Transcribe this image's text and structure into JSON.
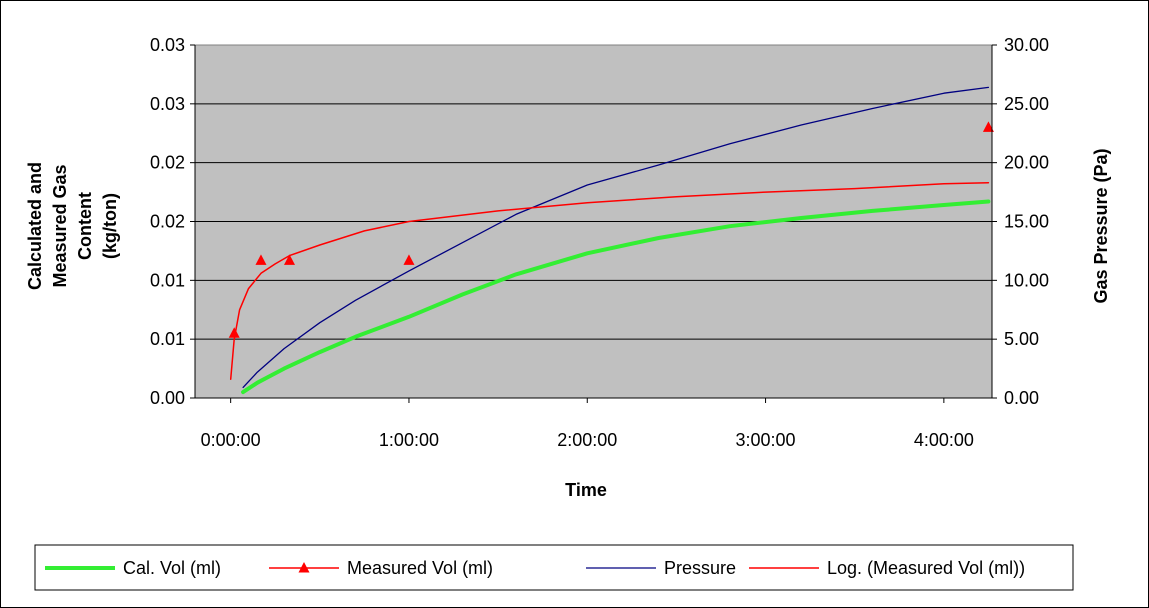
{
  "chart_data": {
    "type": "line",
    "title": "",
    "xlabel": "Time",
    "ylabel_left_lines": [
      "Calculated and",
      "Measured Gas",
      "Content",
      "(kg/ton)"
    ],
    "ylabel_right": "Gas Pressure (Pa)",
    "x_ticks": [
      "0:00:00",
      "1:00:00",
      "2:00:00",
      "3:00:00",
      "4:00:00"
    ],
    "x_tick_hours": [
      0,
      1,
      2,
      3,
      4
    ],
    "xlim_hours": [
      -0.2,
      4.27
    ],
    "y_left_ticks": [
      "0.00",
      "0.01",
      "0.01",
      "0.02",
      "0.02",
      "0.03",
      "0.03"
    ],
    "y_left_lim": [
      0,
      0.03
    ],
    "y_right_ticks": [
      "0.00",
      "5.00",
      "10.00",
      "15.00",
      "20.00",
      "25.00",
      "30.00"
    ],
    "y_right_lim": [
      0,
      30
    ],
    "grid": true,
    "legend_position": "bottom",
    "plot_background": "#c0c0c0",
    "series": [
      {
        "name": "Cal. Vol (ml)",
        "axis": "left",
        "color": "#33ee33",
        "x_hours": [
          0.07,
          0.15,
          0.3,
          0.5,
          0.7,
          1.0,
          1.3,
          1.6,
          2.0,
          2.4,
          2.8,
          3.2,
          3.6,
          4.0,
          4.25
        ],
        "values": [
          0.0005,
          0.0013,
          0.0025,
          0.0039,
          0.0052,
          0.0069,
          0.0088,
          0.0105,
          0.0123,
          0.0136,
          0.0146,
          0.0153,
          0.0159,
          0.0164,
          0.0167
        ]
      },
      {
        "name": "Measured Vol (ml)",
        "axis": "left",
        "color": "#ff0000",
        "marker": "triangle",
        "x_hours": [
          0.02,
          0.17,
          0.33,
          1.0,
          4.25
        ],
        "values": [
          0.0055,
          0.0117,
          0.0117,
          0.0117,
          0.023
        ]
      },
      {
        "name": "Pressure",
        "axis": "right",
        "color": "#000080",
        "x_hours": [
          0.07,
          0.15,
          0.3,
          0.5,
          0.7,
          1.0,
          1.3,
          1.6,
          2.0,
          2.4,
          2.8,
          3.2,
          3.6,
          4.0,
          4.25
        ],
        "values": [
          0.9,
          2.2,
          4.2,
          6.4,
          8.3,
          10.8,
          13.2,
          15.6,
          18.1,
          19.8,
          21.6,
          23.2,
          24.6,
          25.9,
          26.4
        ]
      },
      {
        "name": "Log. (Measured Vol (ml))",
        "axis": "left",
        "color": "#ff0000",
        "x_hours": [
          0.0,
          0.02,
          0.05,
          0.1,
          0.17,
          0.25,
          0.33,
          0.5,
          0.75,
          1.0,
          1.5,
          2.0,
          2.5,
          3.0,
          3.5,
          4.0,
          4.25
        ],
        "values": [
          0.0016,
          0.005,
          0.0075,
          0.0093,
          0.0106,
          0.0114,
          0.0121,
          0.013,
          0.0142,
          0.015,
          0.0159,
          0.0166,
          0.0171,
          0.0175,
          0.0178,
          0.0182,
          0.0183
        ]
      }
    ]
  }
}
